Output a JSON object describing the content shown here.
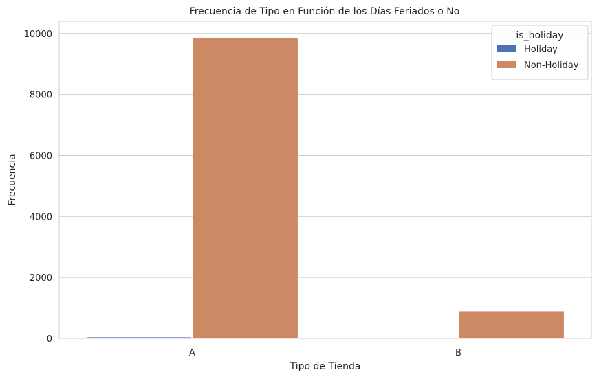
{
  "chart_data": {
    "type": "bar",
    "title": "Frecuencia de Tipo en Función de los Días Feriados o No",
    "xlabel": "Tipo de Tienda",
    "ylabel": "Frecuencia",
    "categories": [
      "A",
      "B"
    ],
    "series": [
      {
        "name": "Holiday",
        "values": [
          45,
          5
        ],
        "color": "#4c72b0"
      },
      {
        "name": "Non-Holiday",
        "values": [
          9850,
          900
        ],
        "color": "#cc8963"
      }
    ],
    "ylim": [
      0,
      10400
    ],
    "yticks": [
      0,
      2000,
      4000,
      6000,
      8000,
      10000
    ],
    "grid": "horizontal",
    "legend": {
      "title": "is_holiday",
      "placement": "top-right"
    }
  }
}
